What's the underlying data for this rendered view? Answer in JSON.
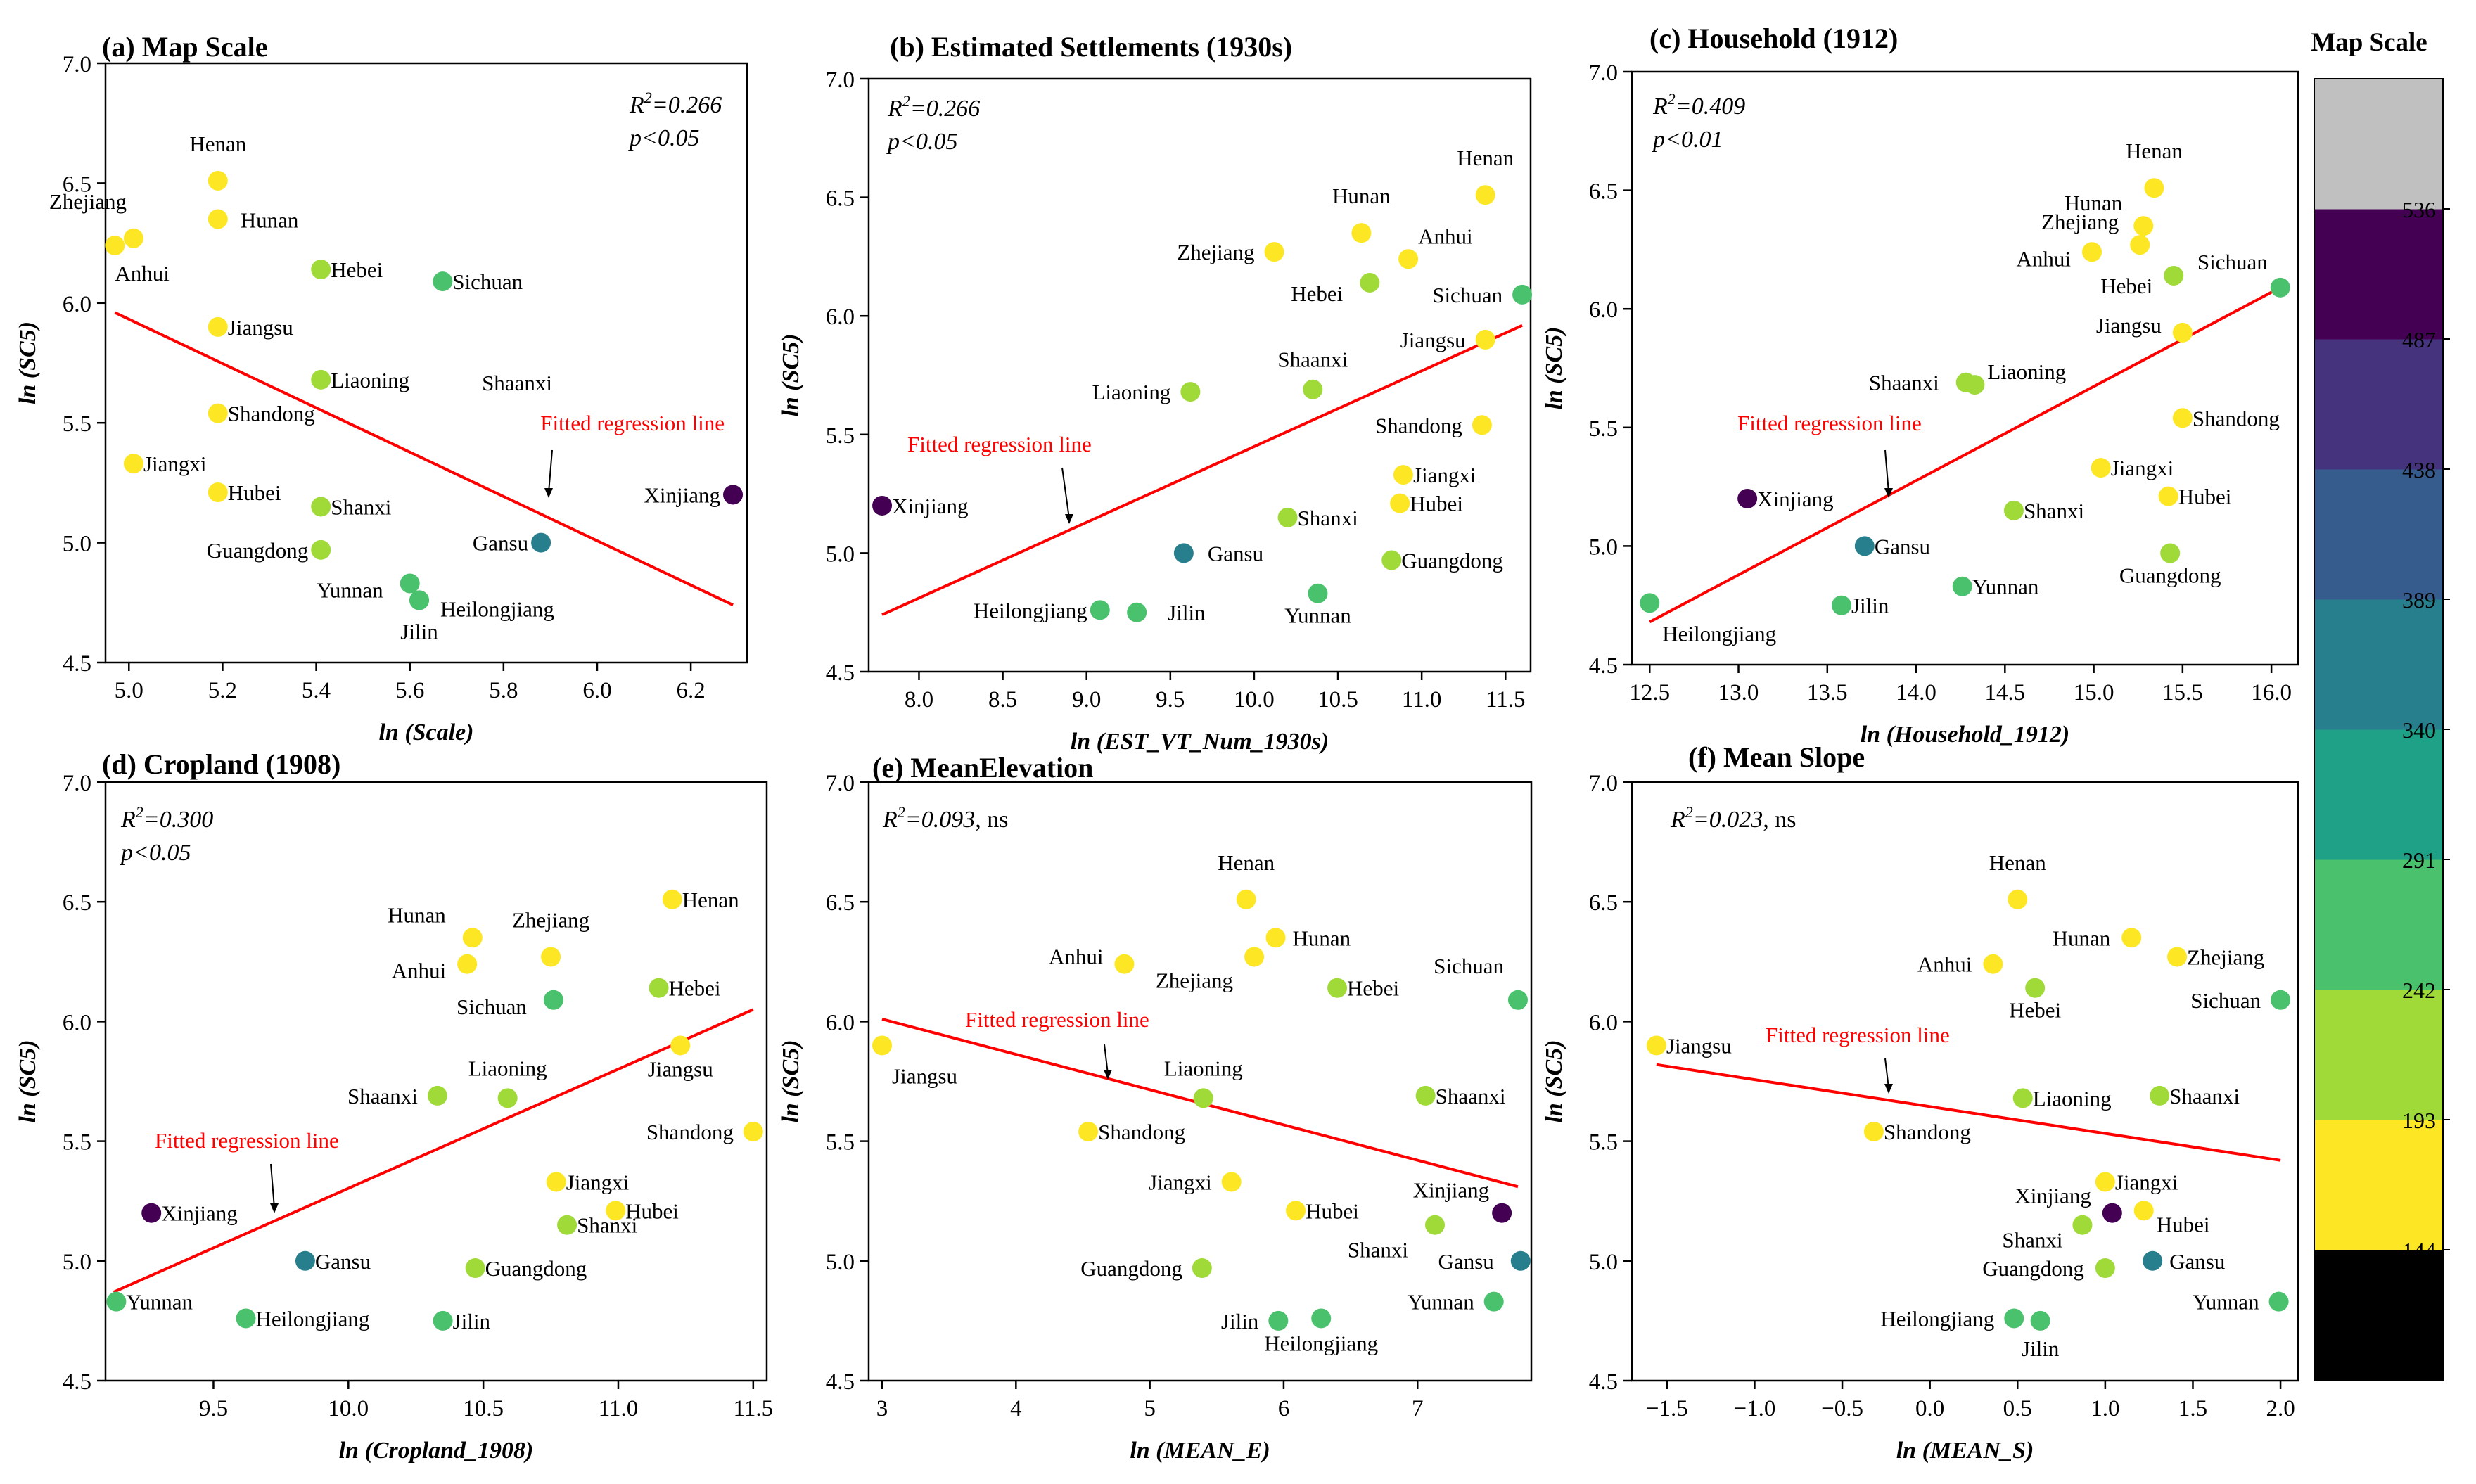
{
  "figure": {
    "colorbar": {
      "title": "Map Scale",
      "ticks": [
        "144",
        "193",
        "242",
        "291",
        "340",
        "389",
        "438",
        "487",
        "536"
      ],
      "colors": [
        "#000000",
        "#fde725",
        "#a0da39",
        "#4ac16d",
        "#1fa187",
        "#277f8e",
        "#365c8d",
        "#46337e",
        "#440154",
        "#c0c0c0"
      ]
    }
  },
  "chart_data": [
    {
      "type": "scatter",
      "title": "(a) Map Scale",
      "xlabel": "ln (Scale)",
      "ylabel": "ln (SC5)",
      "xlim": [
        4.95,
        6.32
      ],
      "ylim": [
        4.5,
        7.0
      ],
      "xticks": [
        "5.0",
        "5.2",
        "5.4",
        "5.6",
        "5.8",
        "6.0",
        "6.2"
      ],
      "yticks": [
        "4.5",
        "5.0",
        "5.5",
        "6.0",
        "6.5",
        "7.0"
      ],
      "r2_value": "=0.266",
      "p_label": "p<0.05",
      "stats_suffix": "",
      "fit_label": "Fitted regression line",
      "fit_line": {
        "x1": 4.97,
        "y1": 5.96,
        "x2": 6.29,
        "y2": 4.74
      },
      "points": [
        {
          "name": "Henan",
          "x": 5.19,
          "y": 6.51,
          "color": "#fde725"
        },
        {
          "name": "Zhejiang",
          "x": 5.01,
          "y": 6.27,
          "color": "#fde725"
        },
        {
          "name": "Hunan",
          "x": 5.19,
          "y": 6.35,
          "color": "#fde725"
        },
        {
          "name": "Anhui",
          "x": 4.97,
          "y": 6.24,
          "color": "#fde725"
        },
        {
          "name": "Hebei",
          "x": 5.41,
          "y": 6.14,
          "color": "#a0da39"
        },
        {
          "name": "Sichuan",
          "x": 5.67,
          "y": 6.09,
          "color": "#4ac16d"
        },
        {
          "name": "Jiangsu",
          "x": 5.19,
          "y": 5.9,
          "color": "#fde725"
        },
        {
          "name": "Liaoning",
          "x": 5.41,
          "y": 5.68,
          "color": "#a0da39"
        },
        {
          "name": "Shaanxi",
          "x": null,
          "y": null,
          "color": "#a0da39"
        },
        {
          "name": "Shandong",
          "x": 5.19,
          "y": 5.54,
          "color": "#fde725"
        },
        {
          "name": "Jiangxi",
          "x": 5.01,
          "y": 5.33,
          "color": "#fde725"
        },
        {
          "name": "Hubei",
          "x": 5.19,
          "y": 5.21,
          "color": "#fde725"
        },
        {
          "name": "Shanxi",
          "x": 5.41,
          "y": 5.15,
          "color": "#a0da39"
        },
        {
          "name": "Guangdong",
          "x": 5.41,
          "y": 4.97,
          "color": "#a0da39"
        },
        {
          "name": "Yunnan",
          "x": 5.6,
          "y": 4.83,
          "color": "#4ac16d"
        },
        {
          "name": "Heilongjiang",
          "x": 5.62,
          "y": 4.76,
          "color": "#4ac16d"
        },
        {
          "name": "Jilin",
          "x": 5.62,
          "y": 4.76,
          "color": "#4ac16d"
        },
        {
          "name": "Gansu",
          "x": 5.88,
          "y": 5.0,
          "color": "#277f8e"
        },
        {
          "name": "Xinjiang",
          "x": 6.29,
          "y": 5.2,
          "color": "#440154"
        }
      ]
    },
    {
      "type": "scatter",
      "title": "(b) Estimated Settlements (1930s)",
      "xlabel": "ln (EST_VT_Num_1930s)",
      "ylabel": "ln (SC5)",
      "xlim": [
        7.7,
        11.65
      ],
      "ylim": [
        4.5,
        7.0
      ],
      "xticks": [
        "8.0",
        "8.5",
        "9.0",
        "9.5",
        "10.0",
        "10.5",
        "11.0",
        "11.5"
      ],
      "yticks": [
        "4.5",
        "5.0",
        "5.5",
        "6.0",
        "6.5",
        "7.0"
      ],
      "r2_value": "=0.266",
      "p_label": "p<0.05",
      "stats_suffix": "",
      "fit_label": "Fitted regression line",
      "fit_line": {
        "x1": 7.78,
        "y1": 4.74,
        "x2": 11.6,
        "y2": 5.96
      },
      "points": [
        {
          "name": "Henan",
          "x": 11.38,
          "y": 6.51,
          "color": "#fde725"
        },
        {
          "name": "Hunan",
          "x": 10.64,
          "y": 6.35,
          "color": "#fde725"
        },
        {
          "name": "Anhui",
          "x": 10.92,
          "y": 6.24,
          "color": "#fde725"
        },
        {
          "name": "Zhejiang",
          "x": 10.12,
          "y": 6.27,
          "color": "#fde725"
        },
        {
          "name": "Hebei",
          "x": 10.69,
          "y": 6.14,
          "color": "#a0da39"
        },
        {
          "name": "Sichuan",
          "x": 11.6,
          "y": 6.09,
          "color": "#4ac16d"
        },
        {
          "name": "Jiangsu",
          "x": 11.38,
          "y": 5.9,
          "color": "#fde725"
        },
        {
          "name": "Liaoning",
          "x": 9.62,
          "y": 5.68,
          "color": "#a0da39"
        },
        {
          "name": "Shaanxi",
          "x": 10.35,
          "y": 5.69,
          "color": "#a0da39"
        },
        {
          "name": "Shandong",
          "x": 11.36,
          "y": 5.54,
          "color": "#fde725"
        },
        {
          "name": "Jiangxi",
          "x": 10.89,
          "y": 5.33,
          "color": "#fde725"
        },
        {
          "name": "Hubei",
          "x": 10.87,
          "y": 5.21,
          "color": "#fde725"
        },
        {
          "name": "Shanxi",
          "x": 10.2,
          "y": 5.15,
          "color": "#a0da39"
        },
        {
          "name": "Guangdong",
          "x": 10.82,
          "y": 4.97,
          "color": "#a0da39"
        },
        {
          "name": "Yunnan",
          "x": 10.38,
          "y": 4.83,
          "color": "#4ac16d"
        },
        {
          "name": "Gansu",
          "x": 9.58,
          "y": 5.0,
          "color": "#277f8e"
        },
        {
          "name": "Heilongjiang",
          "x": 9.08,
          "y": 4.76,
          "color": "#4ac16d"
        },
        {
          "name": "Jilin",
          "x": 9.3,
          "y": 4.75,
          "color": "#4ac16d"
        },
        {
          "name": "Xinjiang",
          "x": 7.78,
          "y": 5.2,
          "color": "#440154"
        }
      ]
    },
    {
      "type": "scatter",
      "title": "(c) Household (1912)",
      "xlabel": "ln (Household_1912)",
      "ylabel": "ln (SC5)",
      "xlim": [
        12.4,
        16.15
      ],
      "ylim": [
        4.5,
        7.0
      ],
      "xticks": [
        "12.5",
        "13.0",
        "13.5",
        "14.0",
        "14.5",
        "15.0",
        "15.5",
        "16.0"
      ],
      "yticks": [
        "4.5",
        "5.0",
        "5.5",
        "6.0",
        "6.5",
        "7.0"
      ],
      "r2_value": "=0.409",
      "p_label": "p<0.01",
      "stats_suffix": "",
      "fit_label": "Fitted regression line",
      "fit_line": {
        "x1": 12.5,
        "y1": 4.68,
        "x2": 16.05,
        "y2": 6.09
      },
      "points": [
        {
          "name": "Henan",
          "x": 15.34,
          "y": 6.51,
          "color": "#fde725"
        },
        {
          "name": "Hunan",
          "x": 15.28,
          "y": 6.35,
          "color": "#fde725"
        },
        {
          "name": "Zhejiang",
          "x": 15.26,
          "y": 6.27,
          "color": "#fde725"
        },
        {
          "name": "Anhui",
          "x": 14.99,
          "y": 6.24,
          "color": "#fde725"
        },
        {
          "name": "Hebei",
          "x": 15.45,
          "y": 6.14,
          "color": "#a0da39"
        },
        {
          "name": "Sichuan",
          "x": 16.05,
          "y": 6.09,
          "color": "#4ac16d"
        },
        {
          "name": "Jiangsu",
          "x": 15.5,
          "y": 5.9,
          "color": "#fde725"
        },
        {
          "name": "Shaanxi",
          "x": 14.28,
          "y": 5.69,
          "color": "#a0da39"
        },
        {
          "name": "Liaoning",
          "x": 14.33,
          "y": 5.68,
          "color": "#a0da39"
        },
        {
          "name": "Shandong",
          "x": 15.5,
          "y": 5.54,
          "color": "#fde725"
        },
        {
          "name": "Jiangxi",
          "x": 15.04,
          "y": 5.33,
          "color": "#fde725"
        },
        {
          "name": "Hubei",
          "x": 15.42,
          "y": 5.21,
          "color": "#fde725"
        },
        {
          "name": "Shanxi",
          "x": 14.55,
          "y": 5.15,
          "color": "#a0da39"
        },
        {
          "name": "Guangdong",
          "x": 15.43,
          "y": 4.97,
          "color": "#a0da39"
        },
        {
          "name": "Yunnan",
          "x": 14.26,
          "y": 4.83,
          "color": "#4ac16d"
        },
        {
          "name": "Gansu",
          "x": 13.71,
          "y": 5.0,
          "color": "#277f8e"
        },
        {
          "name": "Jilin",
          "x": 13.58,
          "y": 4.75,
          "color": "#4ac16d"
        },
        {
          "name": "Heilongjiang",
          "x": 12.5,
          "y": 4.76,
          "color": "#4ac16d"
        },
        {
          "name": "Xinjiang",
          "x": 13.05,
          "y": 5.2,
          "color": "#440154"
        }
      ]
    },
    {
      "type": "scatter",
      "title": "(d) Cropland (1908)",
      "xlabel": "ln (Cropland_1908)",
      "ylabel": "ln (SC5)",
      "xlim": [
        9.1,
        11.55
      ],
      "ylim": [
        4.5,
        7.0
      ],
      "xticks": [
        "9.5",
        "10.0",
        "10.5",
        "11.0",
        "11.5"
      ],
      "yticks": [
        "4.5",
        "5.0",
        "5.5",
        "6.0",
        "6.5",
        "7.0"
      ],
      "r2_value": "=0.300",
      "p_label": "p<0.05",
      "stats_suffix": "",
      "fit_label": "Fitted regression line",
      "fit_line": {
        "x1": 9.13,
        "y1": 4.87,
        "x2": 11.5,
        "y2": 6.05
      },
      "points": [
        {
          "name": "Henan",
          "x": 11.2,
          "y": 6.51,
          "color": "#fde725"
        },
        {
          "name": "Hunan",
          "x": 10.46,
          "y": 6.35,
          "color": "#fde725"
        },
        {
          "name": "Zhejiang",
          "x": 10.75,
          "y": 6.27,
          "color": "#fde725"
        },
        {
          "name": "Anhui",
          "x": 10.44,
          "y": 6.24,
          "color": "#fde725"
        },
        {
          "name": "Hebei",
          "x": 11.15,
          "y": 6.14,
          "color": "#a0da39"
        },
        {
          "name": "Sichuan",
          "x": 10.76,
          "y": 6.09,
          "color": "#4ac16d"
        },
        {
          "name": "Jiangsu",
          "x": 11.23,
          "y": 5.9,
          "color": "#fde725"
        },
        {
          "name": "Shaanxi",
          "x": 10.33,
          "y": 5.69,
          "color": "#a0da39"
        },
        {
          "name": "Liaoning",
          "x": 10.59,
          "y": 5.68,
          "color": "#a0da39"
        },
        {
          "name": "Shandong",
          "x": 11.5,
          "y": 5.54,
          "color": "#fde725"
        },
        {
          "name": "Jiangxi",
          "x": 10.77,
          "y": 5.33,
          "color": "#fde725"
        },
        {
          "name": "Hubei",
          "x": 10.99,
          "y": 5.21,
          "color": "#fde725"
        },
        {
          "name": "Shanxi",
          "x": 10.81,
          "y": 5.15,
          "color": "#a0da39"
        },
        {
          "name": "Guangdong",
          "x": 10.47,
          "y": 4.97,
          "color": "#a0da39"
        },
        {
          "name": "Gansu",
          "x": 9.84,
          "y": 5.0,
          "color": "#277f8e"
        },
        {
          "name": "Yunnan",
          "x": 9.14,
          "y": 4.83,
          "color": "#4ac16d"
        },
        {
          "name": "Heilongjiang",
          "x": 9.62,
          "y": 4.76,
          "color": "#4ac16d"
        },
        {
          "name": "Jilin",
          "x": 10.35,
          "y": 4.75,
          "color": "#4ac16d"
        },
        {
          "name": "Xinjiang",
          "x": 9.27,
          "y": 5.2,
          "color": "#440154"
        }
      ]
    },
    {
      "type": "scatter",
      "title": "(e) MeanElevation",
      "xlabel": "ln (MEAN_E)",
      "ylabel": "ln (SC5)",
      "xlim": [
        2.9,
        7.85
      ],
      "ylim": [
        4.5,
        7.0
      ],
      "xticks": [
        "3",
        "4",
        "5",
        "6",
        "7"
      ],
      "yticks": [
        "4.5",
        "5.0",
        "5.5",
        "6.0",
        "6.5",
        "7.0"
      ],
      "r2_value": "=0.093",
      "p_label": "",
      "stats_suffix": ", ns",
      "fit_label": "Fitted regression line",
      "fit_line": {
        "x1": 3.0,
        "y1": 6.01,
        "x2": 7.75,
        "y2": 5.31
      },
      "points": [
        {
          "name": "Henan",
          "x": 5.72,
          "y": 6.51,
          "color": "#fde725"
        },
        {
          "name": "Hunan",
          "x": 5.94,
          "y": 6.35,
          "color": "#fde725"
        },
        {
          "name": "Anhui",
          "x": 4.81,
          "y": 6.24,
          "color": "#fde725"
        },
        {
          "name": "Zhejiang",
          "x": 5.78,
          "y": 6.27,
          "color": "#fde725"
        },
        {
          "name": "Hebei",
          "x": 6.4,
          "y": 6.14,
          "color": "#a0da39"
        },
        {
          "name": "Sichuan",
          "x": 7.75,
          "y": 6.09,
          "color": "#4ac16d"
        },
        {
          "name": "Jiangsu",
          "x": 3.0,
          "y": 5.9,
          "color": "#fde725"
        },
        {
          "name": "Liaoning",
          "x": 5.4,
          "y": 5.68,
          "color": "#a0da39"
        },
        {
          "name": "Shaanxi",
          "x": 7.06,
          "y": 5.69,
          "color": "#a0da39"
        },
        {
          "name": "Shandong",
          "x": 4.54,
          "y": 5.54,
          "color": "#fde725"
        },
        {
          "name": "Jiangxi",
          "x": 5.61,
          "y": 5.33,
          "color": "#fde725"
        },
        {
          "name": "Hubei",
          "x": 6.09,
          "y": 5.21,
          "color": "#fde725"
        },
        {
          "name": "Shanxi",
          "x": 7.13,
          "y": 5.15,
          "color": "#a0da39"
        },
        {
          "name": "Guangdong",
          "x": 5.39,
          "y": 4.97,
          "color": "#a0da39"
        },
        {
          "name": "Xinjiang",
          "x": 7.63,
          "y": 5.2,
          "color": "#440154"
        },
        {
          "name": "Gansu",
          "x": 7.77,
          "y": 5.0,
          "color": "#277f8e"
        },
        {
          "name": "Yunnan",
          "x": 7.57,
          "y": 4.83,
          "color": "#4ac16d"
        },
        {
          "name": "Jilin",
          "x": 5.96,
          "y": 4.75,
          "color": "#4ac16d"
        },
        {
          "name": "Heilongjiang",
          "x": 6.28,
          "y": 4.76,
          "color": "#4ac16d"
        }
      ]
    },
    {
      "type": "scatter",
      "title": "(f) Mean Slope",
      "xlabel": "ln (MEAN_S)",
      "ylabel": "ln (SC5)",
      "xlim": [
        -1.7,
        2.1
      ],
      "ylim": [
        4.5,
        7.0
      ],
      "xticks": [
        "−1.5",
        "−1.0",
        "−0.5",
        "0.0",
        "0.5",
        "1.0",
        "1.5",
        "2.0"
      ],
      "yticks": [
        "4.5",
        "5.0",
        "5.5",
        "6.0",
        "6.5",
        "7.0"
      ],
      "r2_value": "=0.023",
      "p_label": "",
      "stats_suffix": ", ns",
      "fit_label": "Fitted regression line",
      "fit_line": {
        "x1": -1.56,
        "y1": 5.82,
        "x2": 2.0,
        "y2": 5.42
      },
      "points": [
        {
          "name": "Henan",
          "x": 0.5,
          "y": 6.51,
          "color": "#fde725"
        },
        {
          "name": "Hunan",
          "x": 1.15,
          "y": 6.35,
          "color": "#fde725"
        },
        {
          "name": "Zhejiang",
          "x": 1.41,
          "y": 6.27,
          "color": "#fde725"
        },
        {
          "name": "Anhui",
          "x": 0.36,
          "y": 6.24,
          "color": "#fde725"
        },
        {
          "name": "Hebei",
          "x": 0.6,
          "y": 6.14,
          "color": "#a0da39"
        },
        {
          "name": "Sichuan",
          "x": 2.0,
          "y": 6.09,
          "color": "#4ac16d"
        },
        {
          "name": "Jiangsu",
          "x": -1.56,
          "y": 5.9,
          "color": "#fde725"
        },
        {
          "name": "Liaoning",
          "x": 0.53,
          "y": 5.68,
          "color": "#a0da39"
        },
        {
          "name": "Shaanxi",
          "x": 1.31,
          "y": 5.69,
          "color": "#a0da39"
        },
        {
          "name": "Shandong",
          "x": -0.32,
          "y": 5.54,
          "color": "#fde725"
        },
        {
          "name": "Jiangxi",
          "x": 1.0,
          "y": 5.33,
          "color": "#fde725"
        },
        {
          "name": "Hubei",
          "x": 1.22,
          "y": 5.21,
          "color": "#fde725"
        },
        {
          "name": "Xinjiang",
          "x": 1.04,
          "y": 5.2,
          "color": "#440154"
        },
        {
          "name": "Shanxi",
          "x": 0.87,
          "y": 5.15,
          "color": "#a0da39"
        },
        {
          "name": "Guangdong",
          "x": 1.0,
          "y": 4.97,
          "color": "#a0da39"
        },
        {
          "name": "Gansu",
          "x": 1.27,
          "y": 5.0,
          "color": "#277f8e"
        },
        {
          "name": "Yunnan",
          "x": 1.99,
          "y": 4.83,
          "color": "#4ac16d"
        },
        {
          "name": "Heilongjiang",
          "x": 0.48,
          "y": 4.76,
          "color": "#4ac16d"
        },
        {
          "name": "Jilin",
          "x": 0.63,
          "y": 4.75,
          "color": "#4ac16d"
        }
      ]
    }
  ]
}
